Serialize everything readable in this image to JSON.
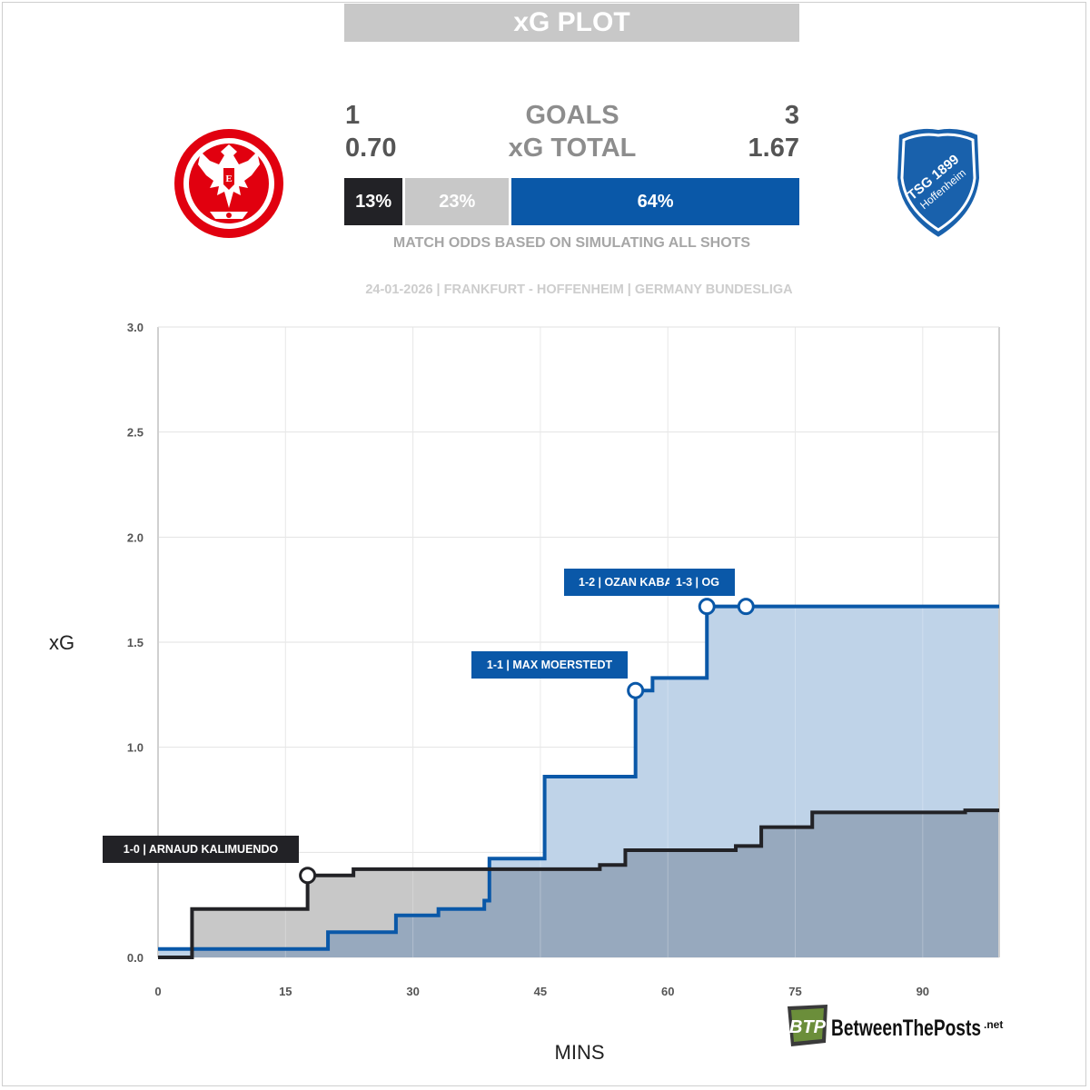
{
  "header": {
    "title": "xG PLOT"
  },
  "teams": {
    "home": {
      "name": "Frankfurt",
      "goals": "1",
      "xg": "0.70",
      "win_pct": "13%",
      "color": "#222226"
    },
    "away": {
      "name": "Hoffenheim",
      "goals": "3",
      "xg": "1.67",
      "win_pct": "64%",
      "color": "#0a58a8",
      "crest_text": [
        "TSG 1899",
        "Hoffenheim"
      ]
    }
  },
  "labels": {
    "goals": "GOALS",
    "xg_total": "xG TOTAL",
    "draw_pct": "23%",
    "odds_caption": "MATCH ODDS BASED ON SIMULATING ALL SHOTS"
  },
  "odds": {
    "home": 13,
    "draw": 23,
    "away": 64
  },
  "match_info": "24-01-2026 | FRANKFURT - HOFFENHEIM | GERMANY BUNDESLIGA",
  "watermark": {
    "mark": "BTP",
    "text": "BetweenThePosts",
    "suffix": ".net"
  },
  "chart_data": {
    "type": "line",
    "step": true,
    "xlabel": "MINS",
    "ylabel": "xG",
    "xlim": [
      0,
      99
    ],
    "ylim": [
      0,
      3
    ],
    "xticks": [
      0,
      15,
      30,
      45,
      60,
      75,
      90
    ],
    "xtick_labels": [
      "0",
      "15",
      "30",
      "45",
      "60",
      "75",
      "90"
    ],
    "yticks": [
      0,
      0.5,
      1,
      1.5,
      2,
      2.5,
      3
    ],
    "ytick_labels": [
      "0.0",
      "0.5",
      "1.0",
      "1.5",
      "2.0",
      "2.5",
      "3.0"
    ],
    "grid": true,
    "series": [
      {
        "name": "Frankfurt",
        "color": "#222226",
        "fill": "#c8c8c8",
        "points": [
          [
            0,
            0
          ],
          [
            4,
            0
          ],
          [
            4,
            0.23
          ],
          [
            17.6,
            0.23
          ],
          [
            17.6,
            0.39
          ],
          [
            23,
            0.39
          ],
          [
            23,
            0.42
          ],
          [
            52,
            0.42
          ],
          [
            52,
            0.44
          ],
          [
            55,
            0.44
          ],
          [
            55,
            0.51
          ],
          [
            68,
            0.51
          ],
          [
            68,
            0.53
          ],
          [
            71,
            0.53
          ],
          [
            71,
            0.62
          ],
          [
            77,
            0.62
          ],
          [
            77,
            0.69
          ],
          [
            95,
            0.69
          ],
          [
            95,
            0.7
          ],
          [
            99,
            0.7
          ]
        ],
        "goals": [
          {
            "x": 17.6,
            "y": 0.39,
            "label": "1-0 | ARNAUD KALIMUENDO"
          }
        ]
      },
      {
        "name": "Hoffenheim",
        "color": "#0a58a8",
        "fill": "#bfd3e8",
        "points": [
          [
            0,
            0.04
          ],
          [
            20,
            0.04
          ],
          [
            20,
            0.12
          ],
          [
            28,
            0.12
          ],
          [
            28,
            0.2
          ],
          [
            33,
            0.2
          ],
          [
            33,
            0.23
          ],
          [
            38.4,
            0.23
          ],
          [
            38.4,
            0.27
          ],
          [
            39,
            0.27
          ],
          [
            39,
            0.47
          ],
          [
            45.5,
            0.47
          ],
          [
            45.5,
            0.86
          ],
          [
            56.2,
            0.86
          ],
          [
            56.2,
            1.27
          ],
          [
            58.2,
            1.27
          ],
          [
            58.2,
            1.33
          ],
          [
            64.6,
            1.33
          ],
          [
            64.6,
            1.67
          ],
          [
            99,
            1.67
          ]
        ],
        "goals": [
          {
            "x": 56.2,
            "y": 1.27,
            "label": "1-1 | MAX MOERSTEDT"
          },
          {
            "x": 64.6,
            "y": 1.67,
            "label": "1-2 | OZAN KABA"
          },
          {
            "x": 69.2,
            "y": 1.67,
            "label": "1-3 | OG"
          }
        ]
      }
    ]
  }
}
